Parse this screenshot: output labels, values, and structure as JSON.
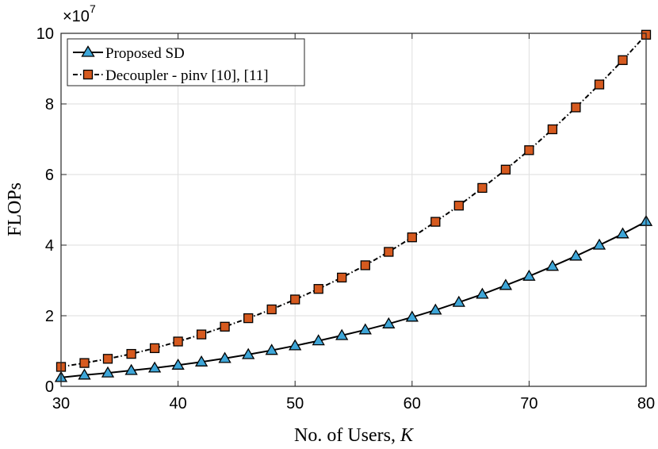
{
  "chart_data": {
    "type": "line",
    "xlabel_text": "No. of Users, ",
    "xlabel_var": "K",
    "ylabel": "FLOPs",
    "y_multiplier_base": "×10",
    "y_multiplier_exp": "7",
    "xlim": [
      30,
      80
    ],
    "ylim": [
      0,
      10
    ],
    "xticks": [
      "30",
      "40",
      "50",
      "60",
      "70",
      "80"
    ],
    "yticks": [
      "0",
      "2",
      "4",
      "6",
      "8",
      "10"
    ],
    "grid": true,
    "legend_position": "top-left",
    "x": [
      30,
      32,
      34,
      36,
      38,
      40,
      42,
      44,
      46,
      48,
      50,
      52,
      54,
      56,
      58,
      60,
      62,
      64,
      66,
      68,
      70,
      72,
      74,
      76,
      78,
      80
    ],
    "series": [
      {
        "name": "Proposed SD",
        "marker": "triangle",
        "line_style": "solid",
        "marker_color": "#3ea6d8",
        "values": [
          0.25,
          0.32,
          0.38,
          0.45,
          0.52,
          0.6,
          0.69,
          0.79,
          0.9,
          1.02,
          1.15,
          1.29,
          1.44,
          1.6,
          1.77,
          1.96,
          2.16,
          2.38,
          2.61,
          2.86,
          3.12,
          3.4,
          3.69,
          4.0,
          4.32,
          4.67
        ]
      },
      {
        "name": "Decoupler - pinv [10], [11]",
        "marker": "square",
        "line_style": "dashdot",
        "marker_color": "#d65a1f",
        "values": [
          0.55,
          0.66,
          0.78,
          0.92,
          1.08,
          1.27,
          1.47,
          1.69,
          1.93,
          2.18,
          2.46,
          2.76,
          3.08,
          3.43,
          3.81,
          4.22,
          4.66,
          5.12,
          5.62,
          6.14,
          6.69,
          7.28,
          7.9,
          8.55,
          9.24,
          9.96
        ]
      }
    ]
  }
}
